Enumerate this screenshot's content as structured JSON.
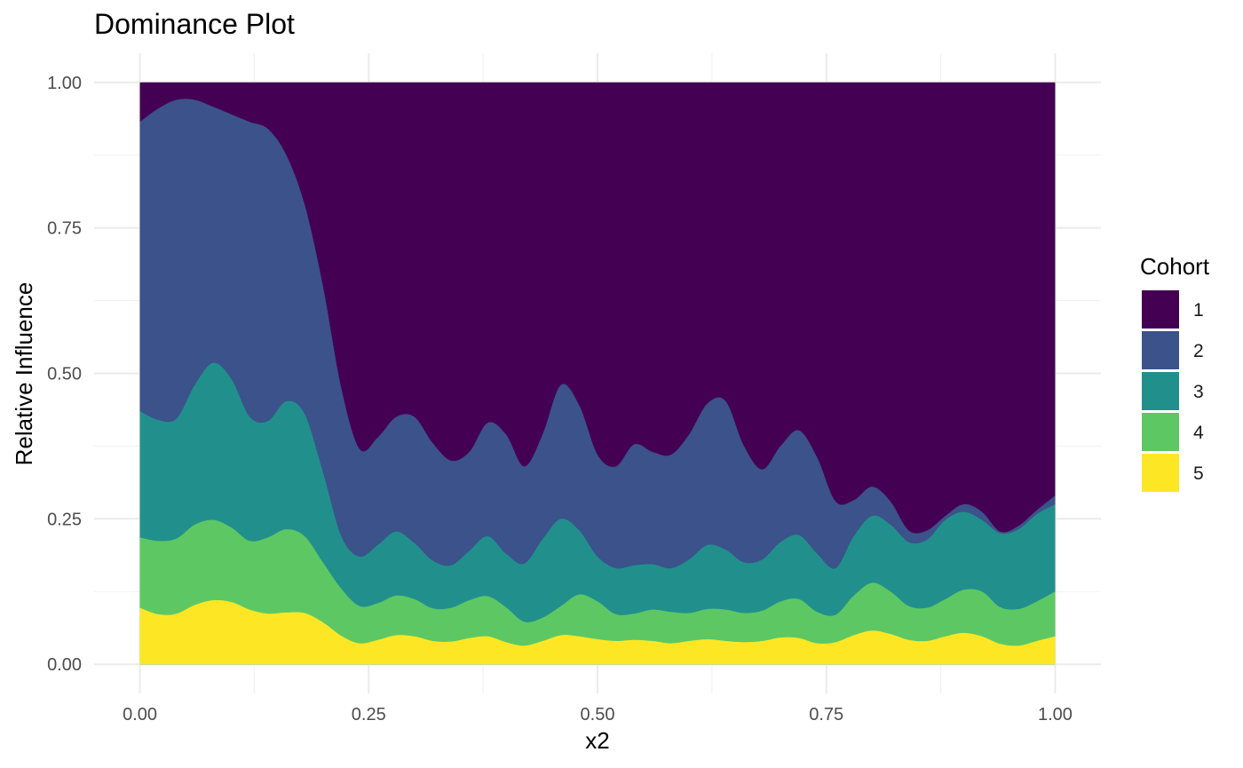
{
  "chart_data": {
    "type": "area",
    "stacked": true,
    "normalized": true,
    "title": "Dominance Plot",
    "xlabel": "x2",
    "ylabel": "Relative Influence",
    "xlim": [
      -0.05,
      1.05
    ],
    "ylim": [
      -0.05,
      1.05
    ],
    "x_ticks": [
      0,
      0.25,
      0.5,
      0.75,
      1
    ],
    "x_tick_labels": [
      "0.00",
      "0.25",
      "0.50",
      "0.75",
      "1.00"
    ],
    "y_ticks": [
      0,
      0.25,
      0.5,
      0.75,
      1
    ],
    "y_tick_labels": [
      "0.00",
      "0.25",
      "0.50",
      "0.75",
      "1.00"
    ],
    "grid": true,
    "legend": {
      "title": "Cohort",
      "position": "right"
    },
    "x": [
      0,
      0.02,
      0.04,
      0.06,
      0.08,
      0.1,
      0.12,
      0.14,
      0.16,
      0.18,
      0.2,
      0.22,
      0.24,
      0.26,
      0.28,
      0.3,
      0.32,
      0.34,
      0.36,
      0.38,
      0.4,
      0.42,
      0.44,
      0.46,
      0.48,
      0.5,
      0.52,
      0.54,
      0.56,
      0.58,
      0.6,
      0.62,
      0.64,
      0.66,
      0.68,
      0.7,
      0.72,
      0.74,
      0.76,
      0.78,
      0.8,
      0.82,
      0.84,
      0.86,
      0.88,
      0.9,
      0.92,
      0.94,
      0.96,
      0.98,
      1
    ],
    "cumulative_top": {
      "5": [
        0.097,
        0.086,
        0.087,
        0.102,
        0.11,
        0.107,
        0.094,
        0.087,
        0.089,
        0.088,
        0.072,
        0.049,
        0.036,
        0.042,
        0.05,
        0.048,
        0.04,
        0.039,
        0.045,
        0.048,
        0.038,
        0.032,
        0.04,
        0.05,
        0.048,
        0.043,
        0.04,
        0.042,
        0.04,
        0.036,
        0.04,
        0.043,
        0.04,
        0.038,
        0.04,
        0.046,
        0.045,
        0.036,
        0.038,
        0.05,
        0.058,
        0.052,
        0.042,
        0.04,
        0.048,
        0.054,
        0.048,
        0.035,
        0.032,
        0.04,
        0.048
      ],
      "4": [
        0.218,
        0.212,
        0.216,
        0.24,
        0.248,
        0.235,
        0.212,
        0.218,
        0.232,
        0.22,
        0.175,
        0.13,
        0.1,
        0.105,
        0.118,
        0.112,
        0.096,
        0.097,
        0.11,
        0.117,
        0.098,
        0.073,
        0.08,
        0.1,
        0.12,
        0.108,
        0.086,
        0.087,
        0.094,
        0.09,
        0.088,
        0.095,
        0.094,
        0.088,
        0.092,
        0.108,
        0.112,
        0.09,
        0.085,
        0.118,
        0.14,
        0.125,
        0.1,
        0.097,
        0.112,
        0.128,
        0.125,
        0.098,
        0.095,
        0.108,
        0.125
      ],
      "3": [
        0.435,
        0.42,
        0.422,
        0.48,
        0.518,
        0.49,
        0.425,
        0.418,
        0.452,
        0.43,
        0.33,
        0.22,
        0.185,
        0.205,
        0.228,
        0.208,
        0.178,
        0.17,
        0.195,
        0.22,
        0.19,
        0.173,
        0.215,
        0.25,
        0.23,
        0.185,
        0.165,
        0.17,
        0.172,
        0.165,
        0.18,
        0.205,
        0.197,
        0.175,
        0.18,
        0.21,
        0.222,
        0.19,
        0.165,
        0.22,
        0.255,
        0.24,
        0.21,
        0.214,
        0.248,
        0.262,
        0.248,
        0.225,
        0.232,
        0.258,
        0.275
      ],
      "2": [
        0.932,
        0.955,
        0.97,
        0.97,
        0.958,
        0.945,
        0.932,
        0.92,
        0.875,
        0.79,
        0.65,
        0.475,
        0.37,
        0.39,
        0.425,
        0.425,
        0.38,
        0.35,
        0.365,
        0.415,
        0.395,
        0.34,
        0.395,
        0.48,
        0.445,
        0.36,
        0.34,
        0.378,
        0.365,
        0.36,
        0.395,
        0.448,
        0.452,
        0.375,
        0.335,
        0.375,
        0.402,
        0.355,
        0.28,
        0.282,
        0.305,
        0.28,
        0.23,
        0.23,
        0.255,
        0.275,
        0.262,
        0.228,
        0.238,
        0.265,
        0.29
      ],
      "1": [
        1,
        1,
        1,
        1,
        1,
        1,
        1,
        1,
        1,
        1,
        1,
        1,
        1,
        1,
        1,
        1,
        1,
        1,
        1,
        1,
        1,
        1,
        1,
        1,
        1,
        1,
        1,
        1,
        1,
        1,
        1,
        1,
        1,
        1,
        1,
        1,
        1,
        1,
        1,
        1,
        1,
        1,
        1,
        1,
        1,
        1,
        1,
        1,
        1,
        1,
        1
      ]
    },
    "series": [
      {
        "name": "1",
        "color": "#440154"
      },
      {
        "name": "2",
        "color": "#3b528b"
      },
      {
        "name": "3",
        "color": "#21908c"
      },
      {
        "name": "4",
        "color": "#5dc863"
      },
      {
        "name": "5",
        "color": "#fde725"
      }
    ]
  }
}
